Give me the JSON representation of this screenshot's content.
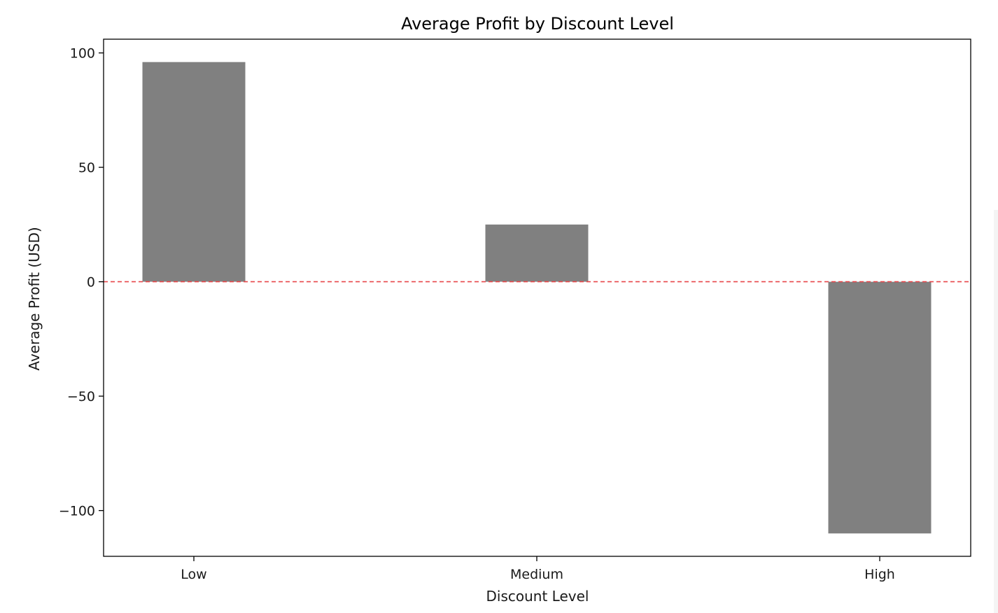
{
  "chart_data": {
    "type": "bar",
    "title": "Average Profit by Discount Level",
    "xlabel": "Discount Level",
    "ylabel": "Average Profit (USD)",
    "categories": [
      "Low",
      "Medium",
      "High"
    ],
    "values": [
      96,
      25,
      -110
    ],
    "ylim": [
      -120,
      106
    ],
    "yticks": [
      100,
      50,
      0,
      -50,
      -100
    ],
    "ytick_labels": [
      "100",
      "50",
      "0",
      "−50",
      "−100"
    ],
    "grid": false,
    "reference_line": {
      "y": 0,
      "style": "dashed"
    },
    "colors": {
      "bar": "#808080",
      "reference_line": "#e8474a",
      "axes": "#000000"
    }
  }
}
